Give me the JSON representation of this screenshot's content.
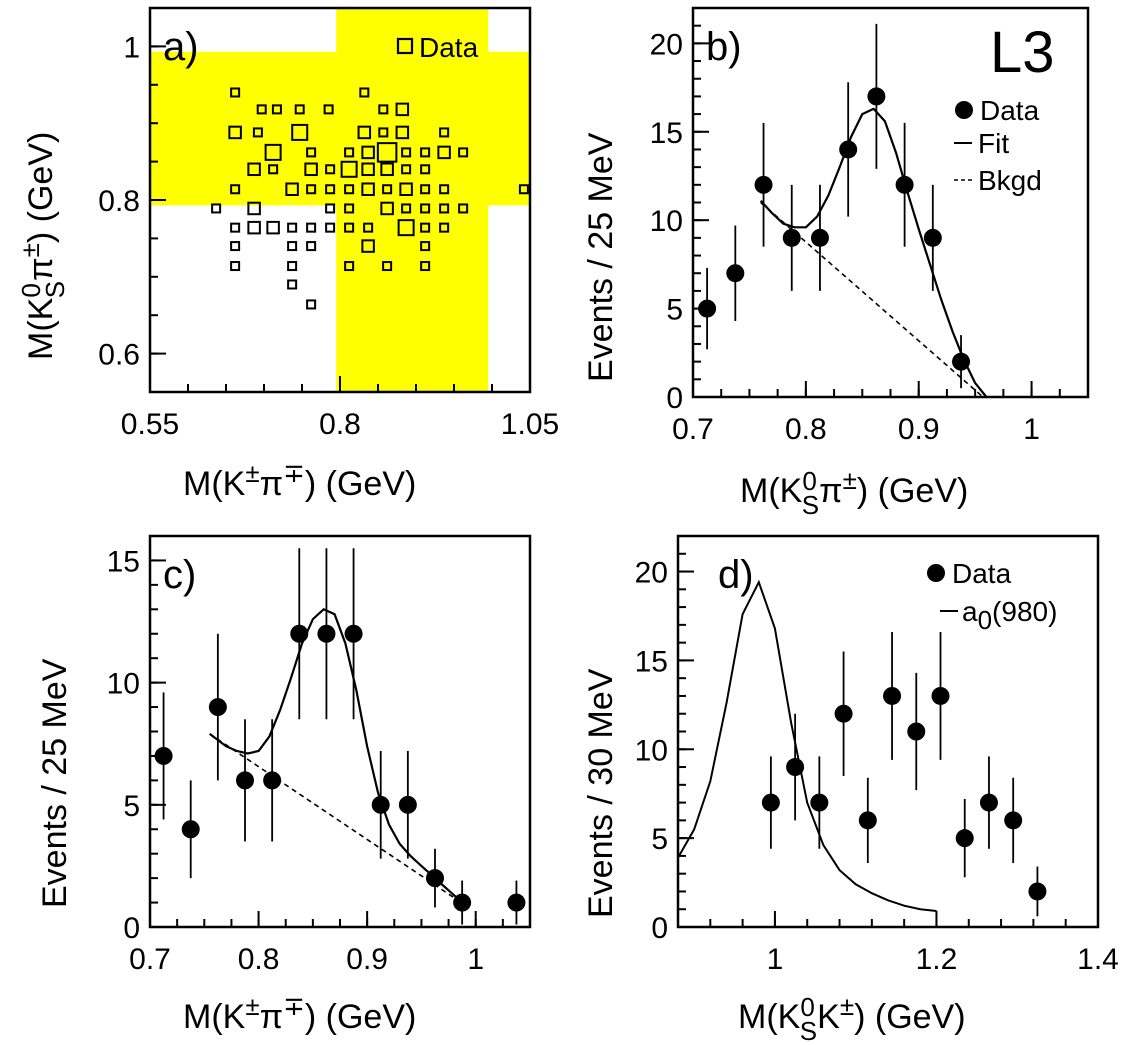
{
  "chart_data": [
    {
      "panel": "a)",
      "type": "scatter",
      "xlim": [
        0.55,
        1.05
      ],
      "ylim": [
        0.55,
        1.05
      ],
      "x_ticks": [
        "0.55",
        "0.8",
        "1.05"
      ],
      "y_ticks": [
        "0.6",
        "0.8",
        "1"
      ],
      "xlabel": {
        "a": "M(K",
        "b": "±",
        "c": "π",
        "d": "∓",
        "e": ")  (GeV)"
      },
      "ylabel": {
        "a": "M(K",
        "b": "0",
        "c": "S",
        "d": "π",
        "e": "±",
        "f": ")  (GeV)"
      },
      "legend": [
        {
          "label": "Data",
          "marker": "open-square"
        }
      ],
      "bands": [
        {
          "axis": "x",
          "range": [
            0.795,
            0.995
          ],
          "color": "#ffff00"
        },
        {
          "axis": "y",
          "range": [
            0.793,
            0.993
          ],
          "color": "#ffff00"
        }
      ],
      "points": [
        {
          "x": 0.662,
          "y": 0.94,
          "w": 1
        },
        {
          "x": 0.697,
          "y": 0.918,
          "w": 1
        },
        {
          "x": 0.717,
          "y": 0.918,
          "w": 1
        },
        {
          "x": 0.747,
          "y": 0.918,
          "w": 1
        },
        {
          "x": 0.785,
          "y": 0.918,
          "w": 1
        },
        {
          "x": 0.832,
          "y": 0.94,
          "w": 1
        },
        {
          "x": 0.857,
          "y": 0.918,
          "w": 1
        },
        {
          "x": 0.882,
          "y": 0.918,
          "w": 2
        },
        {
          "x": 0.662,
          "y": 0.888,
          "w": 2
        },
        {
          "x": 0.692,
          "y": 0.888,
          "w": 1
        },
        {
          "x": 0.747,
          "y": 0.888,
          "w": 3
        },
        {
          "x": 0.832,
          "y": 0.888,
          "w": 2
        },
        {
          "x": 0.857,
          "y": 0.888,
          "w": 1
        },
        {
          "x": 0.882,
          "y": 0.888,
          "w": 2
        },
        {
          "x": 0.937,
          "y": 0.888,
          "w": 1
        },
        {
          "x": 0.712,
          "y": 0.862,
          "w": 3
        },
        {
          "x": 0.762,
          "y": 0.862,
          "w": 1
        },
        {
          "x": 0.812,
          "y": 0.862,
          "w": 1
        },
        {
          "x": 0.837,
          "y": 0.862,
          "w": 2
        },
        {
          "x": 0.862,
          "y": 0.862,
          "w": 4
        },
        {
          "x": 0.887,
          "y": 0.862,
          "w": 1
        },
        {
          "x": 0.912,
          "y": 0.862,
          "w": 1
        },
        {
          "x": 0.937,
          "y": 0.862,
          "w": 2
        },
        {
          "x": 0.962,
          "y": 0.862,
          "w": 1
        },
        {
          "x": 0.687,
          "y": 0.84,
          "w": 2
        },
        {
          "x": 0.712,
          "y": 0.84,
          "w": 1
        },
        {
          "x": 0.762,
          "y": 0.84,
          "w": 2
        },
        {
          "x": 0.787,
          "y": 0.84,
          "w": 1
        },
        {
          "x": 0.812,
          "y": 0.84,
          "w": 3
        },
        {
          "x": 0.837,
          "y": 0.84,
          "w": 2
        },
        {
          "x": 0.862,
          "y": 0.84,
          "w": 2
        },
        {
          "x": 0.887,
          "y": 0.84,
          "w": 1
        },
        {
          "x": 0.912,
          "y": 0.84,
          "w": 1
        },
        {
          "x": 0.662,
          "y": 0.814,
          "w": 1
        },
        {
          "x": 0.737,
          "y": 0.814,
          "w": 2
        },
        {
          "x": 0.762,
          "y": 0.814,
          "w": 1
        },
        {
          "x": 0.787,
          "y": 0.814,
          "w": 1
        },
        {
          "x": 0.812,
          "y": 0.814,
          "w": 1
        },
        {
          "x": 0.837,
          "y": 0.814,
          "w": 2
        },
        {
          "x": 0.862,
          "y": 0.814,
          "w": 1
        },
        {
          "x": 0.887,
          "y": 0.814,
          "w": 2
        },
        {
          "x": 0.912,
          "y": 0.814,
          "w": 1
        },
        {
          "x": 0.937,
          "y": 0.814,
          "w": 1
        },
        {
          "x": 1.042,
          "y": 0.814,
          "w": 1
        },
        {
          "x": 0.637,
          "y": 0.789,
          "w": 1
        },
        {
          "x": 0.687,
          "y": 0.789,
          "w": 2
        },
        {
          "x": 0.787,
          "y": 0.789,
          "w": 1
        },
        {
          "x": 0.812,
          "y": 0.789,
          "w": 1
        },
        {
          "x": 0.862,
          "y": 0.789,
          "w": 2
        },
        {
          "x": 0.887,
          "y": 0.789,
          "w": 1
        },
        {
          "x": 0.912,
          "y": 0.789,
          "w": 1
        },
        {
          "x": 0.937,
          "y": 0.789,
          "w": 1
        },
        {
          "x": 0.962,
          "y": 0.789,
          "w": 1
        },
        {
          "x": 0.662,
          "y": 0.764,
          "w": 1
        },
        {
          "x": 0.687,
          "y": 0.764,
          "w": 2
        },
        {
          "x": 0.712,
          "y": 0.764,
          "w": 2
        },
        {
          "x": 0.737,
          "y": 0.764,
          "w": 1
        },
        {
          "x": 0.762,
          "y": 0.764,
          "w": 1
        },
        {
          "x": 0.787,
          "y": 0.764,
          "w": 1
        },
        {
          "x": 0.812,
          "y": 0.764,
          "w": 1
        },
        {
          "x": 0.837,
          "y": 0.764,
          "w": 1
        },
        {
          "x": 0.887,
          "y": 0.764,
          "w": 3
        },
        {
          "x": 0.912,
          "y": 0.764,
          "w": 1
        },
        {
          "x": 0.937,
          "y": 0.764,
          "w": 1
        },
        {
          "x": 0.662,
          "y": 0.74,
          "w": 1
        },
        {
          "x": 0.737,
          "y": 0.74,
          "w": 1
        },
        {
          "x": 0.762,
          "y": 0.74,
          "w": 1
        },
        {
          "x": 0.837,
          "y": 0.74,
          "w": 2
        },
        {
          "x": 0.912,
          "y": 0.74,
          "w": 1
        },
        {
          "x": 0.662,
          "y": 0.714,
          "w": 1
        },
        {
          "x": 0.737,
          "y": 0.714,
          "w": 1
        },
        {
          "x": 0.812,
          "y": 0.714,
          "w": 1
        },
        {
          "x": 0.862,
          "y": 0.714,
          "w": 1
        },
        {
          "x": 0.912,
          "y": 0.714,
          "w": 1
        },
        {
          "x": 0.737,
          "y": 0.69,
          "w": 1
        },
        {
          "x": 0.762,
          "y": 0.664,
          "w": 1
        }
      ]
    },
    {
      "panel": "b)",
      "type": "scatter",
      "xlim": [
        0.7,
        1.05
      ],
      "ylim": [
        0,
        22
      ],
      "x_ticks": [
        "0.7",
        "0.8",
        "0.9",
        "1"
      ],
      "y_ticks": [
        "0",
        "5",
        "10",
        "15",
        "20"
      ],
      "xlabel": {
        "a": "M(K",
        "b": "0",
        "c": "S",
        "d": "π",
        "e": "±",
        "f": ")  (GeV)"
      },
      "ylabel": "Events / 25 MeV",
      "stamp": "L3",
      "legend": [
        {
          "label": "Data",
          "marker": "dot"
        },
        {
          "label": "Fit",
          "marker": "solid"
        },
        {
          "label": "Bkgd",
          "marker": "dashed"
        }
      ],
      "series": [
        {
          "name": "Data",
          "x": [
            0.7125,
            0.7375,
            0.7625,
            0.7875,
            0.8125,
            0.8375,
            0.8625,
            0.8875,
            0.9125,
            0.9375
          ],
          "y": [
            5,
            7,
            12,
            9,
            9,
            14,
            17,
            12,
            9,
            2
          ],
          "yerr": [
            2.3,
            2.7,
            3.5,
            3.0,
            3.0,
            3.8,
            4.1,
            3.5,
            3.0,
            1.5
          ]
        },
        {
          "name": "Fit",
          "x": [
            0.76,
            0.77,
            0.78,
            0.79,
            0.8,
            0.81,
            0.82,
            0.83,
            0.84,
            0.85,
            0.86,
            0.87,
            0.88,
            0.89,
            0.9,
            0.91,
            0.92,
            0.93,
            0.94,
            0.95,
            0.96
          ],
          "y": [
            11.1,
            10.4,
            9.8,
            9.6,
            9.6,
            10.2,
            11.4,
            13.0,
            14.7,
            16.0,
            16.3,
            15.6,
            13.8,
            11.6,
            9.5,
            7.5,
            5.5,
            3.7,
            2.1,
            0.8,
            0.0
          ]
        },
        {
          "name": "Bkgd",
          "x": [
            0.76,
            0.957
          ],
          "y": [
            11.0,
            0.0
          ]
        }
      ]
    },
    {
      "panel": "c)",
      "type": "scatter",
      "xlim": [
        0.7,
        1.05
      ],
      "ylim": [
        0,
        16
      ],
      "x_ticks": [
        "0.7",
        "0.8",
        "0.9",
        "1"
      ],
      "y_ticks": [
        "0",
        "5",
        "10",
        "15"
      ],
      "xlabel": {
        "a": "M(K",
        "b": "±",
        "c": "π",
        "d": "∓",
        "e": ")  (GeV)"
      },
      "ylabel": "Events / 25 MeV",
      "series": [
        {
          "name": "Data",
          "x": [
            0.7125,
            0.7375,
            0.7625,
            0.7875,
            0.8125,
            0.8375,
            0.8625,
            0.8875,
            0.9125,
            0.9375,
            0.9625,
            0.9875,
            1.0375
          ],
          "y": [
            7,
            4,
            9,
            6,
            6,
            12,
            12,
            12,
            5,
            5,
            2,
            1,
            1
          ],
          "yerr": [
            2.6,
            2.0,
            3.0,
            2.5,
            2.5,
            3.5,
            3.5,
            3.5,
            2.2,
            2.2,
            1.2,
            0.9,
            0.9
          ]
        },
        {
          "name": "Fit",
          "x": [
            0.755,
            0.77,
            0.78,
            0.79,
            0.8,
            0.81,
            0.82,
            0.83,
            0.84,
            0.85,
            0.86,
            0.87,
            0.88,
            0.89,
            0.9,
            0.91,
            0.92,
            0.93,
            0.94,
            0.95,
            0.96,
            0.97,
            0.98,
            0.99
          ],
          "y": [
            7.9,
            7.4,
            7.2,
            7.1,
            7.2,
            7.8,
            8.9,
            10.2,
            11.6,
            12.6,
            13.0,
            12.8,
            11.6,
            9.7,
            7.4,
            5.5,
            4.2,
            3.4,
            2.9,
            2.5,
            2.1,
            1.7,
            1.3,
            0.9
          ]
        },
        {
          "name": "Bkgd",
          "x": [
            0.755,
            0.99
          ],
          "y": [
            7.9,
            0.9
          ]
        }
      ]
    },
    {
      "panel": "d)",
      "type": "scatter",
      "xlim": [
        0.88,
        1.4
      ],
      "ylim": [
        0,
        22
      ],
      "x_ticks": [
        "1",
        "1.2",
        "1.4"
      ],
      "y_ticks": [
        "0",
        "5",
        "10",
        "15",
        "20"
      ],
      "xlabel": {
        "a": "M(K",
        "b": "0",
        "c": "S",
        "d": "K",
        "e": "±",
        "f": ")  (GeV)"
      },
      "ylabel": "Events / 30 MeV",
      "legend": [
        {
          "label": "Data",
          "marker": "dot"
        },
        {
          "label": "a",
          "sub": "0",
          "rest": "(980)",
          "marker": "solid"
        }
      ],
      "series": [
        {
          "name": "Data",
          "x": [
            0.995,
            1.025,
            1.055,
            1.085,
            1.115,
            1.145,
            1.175,
            1.205,
            1.235,
            1.265,
            1.295,
            1.325
          ],
          "y": [
            7,
            9,
            7,
            12,
            6,
            13,
            11,
            13,
            5,
            7,
            6,
            2
          ],
          "yerr": [
            2.6,
            3.0,
            2.6,
            3.5,
            2.4,
            3.6,
            3.3,
            3.6,
            2.2,
            2.6,
            2.4,
            1.4
          ]
        },
        {
          "name": "a0(980)",
          "x": [
            0.88,
            0.9,
            0.92,
            0.94,
            0.96,
            0.98,
            1.0,
            1.02,
            1.04,
            1.06,
            1.08,
            1.1,
            1.12,
            1.14,
            1.16,
            1.18,
            1.2
          ],
          "y": [
            3.9,
            5.5,
            8.2,
            12.6,
            17.6,
            19.4,
            16.8,
            11.5,
            7.0,
            4.6,
            3.2,
            2.4,
            1.9,
            1.5,
            1.2,
            1.0,
            0.9
          ]
        }
      ]
    }
  ]
}
